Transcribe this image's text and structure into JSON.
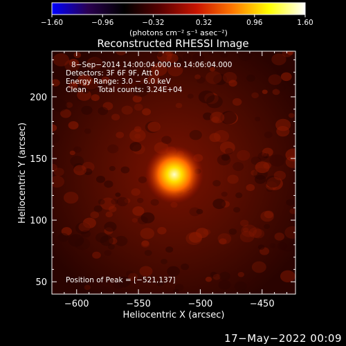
{
  "chart_data": {
    "type": "heatmap",
    "title": "Reconstructed RHESSI Image",
    "xlabel": "Heliocentric X (arcsec)",
    "ylabel": "Heliocentric Y (arcsec)",
    "xlim": [
      -620,
      -423
    ],
    "ylim": [
      40,
      237
    ],
    "xticks": [
      -600,
      -550,
      -500,
      -450
    ],
    "xtick_labels": [
      "−600",
      "−550",
      "−500",
      "−450"
    ],
    "yticks": [
      50,
      100,
      150,
      200
    ],
    "ytick_labels": [
      "50",
      "100",
      "150",
      "200"
    ],
    "peak": {
      "x": -521,
      "y": 137
    },
    "colorbar": {
      "min": -1.6,
      "max": 1.6,
      "ticks": [
        -1.6,
        -0.96,
        -0.32,
        0.32,
        0.96,
        1.6
      ],
      "tick_labels": [
        "−1.60",
        "−0.96",
        "−0.32",
        "0.32",
        "0.96",
        "1.60"
      ],
      "unit_label": "(photons cm⁻² s⁻¹ asec⁻²)",
      "colormap": [
        "#0000ff",
        "#2a0050",
        "#000000",
        "#5a0000",
        "#c81400",
        "#ff7800",
        "#ffff00",
        "#ffffff"
      ]
    },
    "annotations": [
      "8−Sep−2014 14:00:04.000 to 14:06:04.000",
      "Detectors: 3F 6F 9F, Att 0",
      "Energy Range: 3.0 − 6.0 keV",
      "Clean     Total counts: 3.24E+04"
    ],
    "peak_label": "Position of Peak = [−521,137]"
  },
  "footer": {
    "timestamp": "17−May−2022 00:09"
  }
}
